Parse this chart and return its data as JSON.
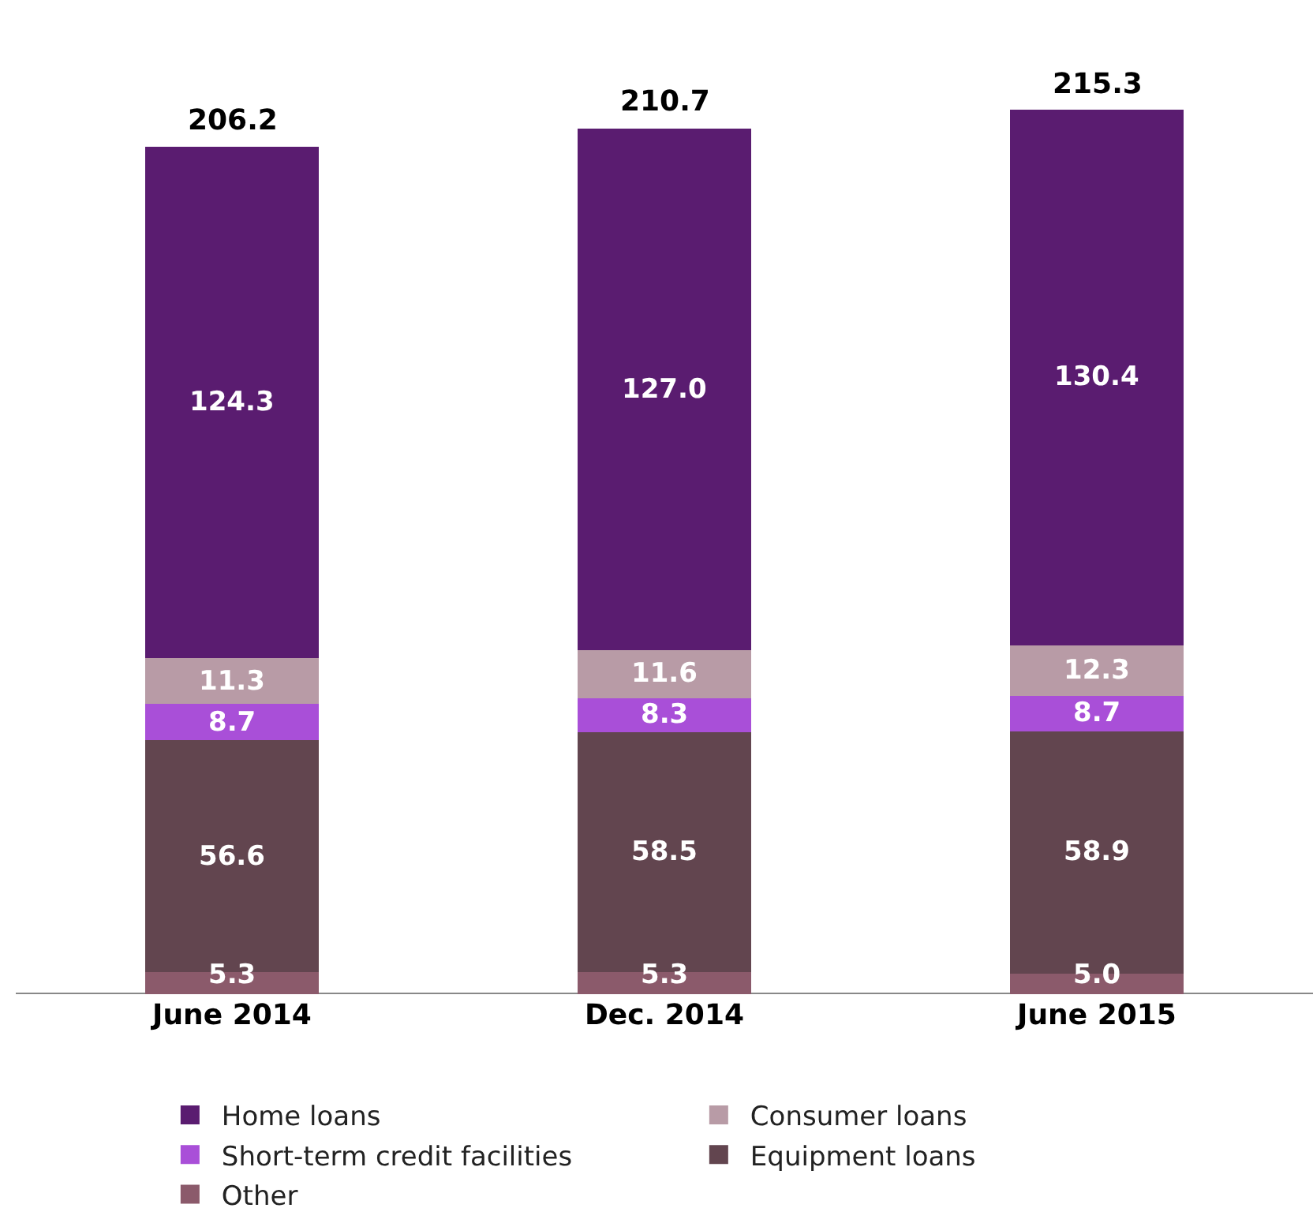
{
  "chart_data": {
    "type": "bar",
    "stacked": true,
    "legend": "bottom",
    "categories": [
      "June 2014",
      "Dec. 2014",
      "June 2015"
    ],
    "series": [
      {
        "name": "Other",
        "color": "#8b5a6b",
        "values": [
          5.3,
          5.3,
          5.0
        ],
        "value_labels": [
          "5.3",
          "5.3",
          "5.0"
        ]
      },
      {
        "name": "Equipment loans",
        "color": "#62454f",
        "values": [
          56.6,
          58.5,
          58.9
        ],
        "value_labels": [
          "56.6",
          "58.5",
          "58.9"
        ]
      },
      {
        "name": "Short-term credit facilities",
        "color": "#a94fd8",
        "values": [
          8.7,
          8.3,
          8.7
        ],
        "value_labels": [
          "8.7",
          "8.3",
          "8.7"
        ]
      },
      {
        "name": "Consumer loans",
        "color": "#b89ba6",
        "values": [
          11.3,
          11.6,
          12.3
        ],
        "value_labels": [
          "11.3",
          "11.6",
          "12.3"
        ]
      },
      {
        "name": "Home loans",
        "color": "#5a1c70",
        "values": [
          124.3,
          127.0,
          130.4
        ],
        "value_labels": [
          "124.3",
          "127.0",
          "130.4"
        ]
      }
    ],
    "totals": [
      "206.2",
      "210.7",
      "215.3"
    ]
  }
}
